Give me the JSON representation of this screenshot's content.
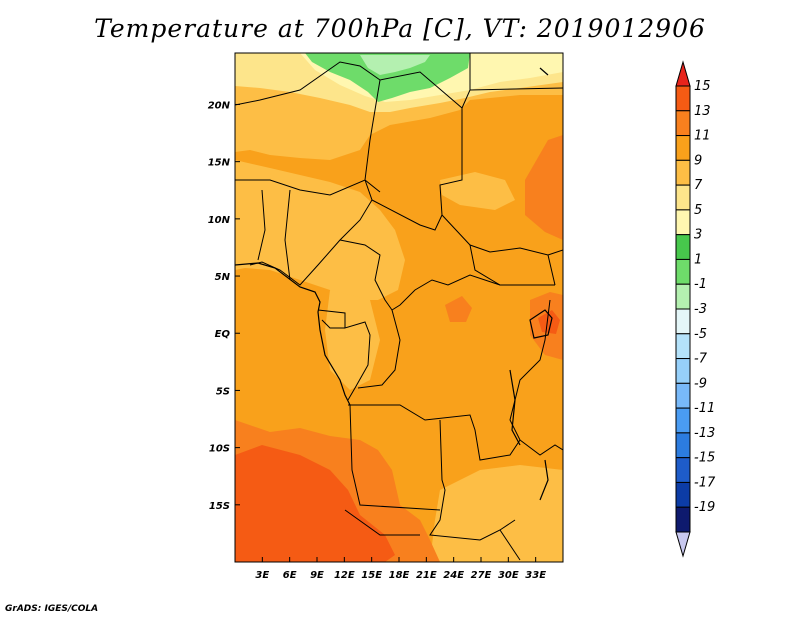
{
  "title": "Temperature at 700hPa [C], VT: 2019012906",
  "credit": "GrADS: IGES/COLA",
  "map": {
    "lon_range": [
      0,
      36
    ],
    "lat_range": [
      -20,
      24.5
    ],
    "lon_ticks": [
      {
        "lon": 3,
        "label": "3E"
      },
      {
        "lon": 6,
        "label": "6E"
      },
      {
        "lon": 9,
        "label": "9E"
      },
      {
        "lon": 12,
        "label": "12E"
      },
      {
        "lon": 15,
        "label": "15E"
      },
      {
        "lon": 18,
        "label": "18E"
      },
      {
        "lon": 21,
        "label": "21E"
      },
      {
        "lon": 24,
        "label": "24E"
      },
      {
        "lon": 27,
        "label": "27E"
      },
      {
        "lon": 30,
        "label": "30E"
      },
      {
        "lon": 33,
        "label": "33E"
      }
    ],
    "lat_ticks": [
      {
        "lat": 20,
        "label": "20N"
      },
      {
        "lat": 15,
        "label": "15N"
      },
      {
        "lat": 10,
        "label": "10N"
      },
      {
        "lat": 5,
        "label": "5N"
      },
      {
        "lat": 0,
        "label": "EQ"
      },
      {
        "lat": -5,
        "label": "5S"
      },
      {
        "lat": -10,
        "label": "10S"
      },
      {
        "lat": -15,
        "label": "15S"
      }
    ]
  },
  "colorbar": {
    "labels": [
      "15",
      "13",
      "11",
      "9",
      "7",
      "5",
      "3",
      "1",
      "-1",
      "-3",
      "-5",
      "-7",
      "-9",
      "-11",
      "-13",
      "-15",
      "-17",
      "-19"
    ],
    "colors": [
      "#e8241c",
      "#f55b14",
      "#f8801e",
      "#f9a11b",
      "#fdbe45",
      "#fde58b",
      "#fff7b0",
      "#47c84c",
      "#6edc6a",
      "#b4f0b0",
      "#e4f6f8",
      "#b4e2fa",
      "#96d0fa",
      "#78b9f9",
      "#4a9cf3",
      "#2c7cdf",
      "#1e5cc9",
      "#0c3ca6",
      "#0e1a6e",
      "#c8c8ef"
    ]
  },
  "colors": {
    "orange": "#f9a11b",
    "dark_orange": "#f8801e",
    "red_orange": "#f55b14",
    "light_orange": "#fdbe45",
    "yellow": "#fde58b",
    "pale_yellow": "#fff7b0",
    "green": "#6edc6a",
    "light_green": "#b4f0b0"
  }
}
